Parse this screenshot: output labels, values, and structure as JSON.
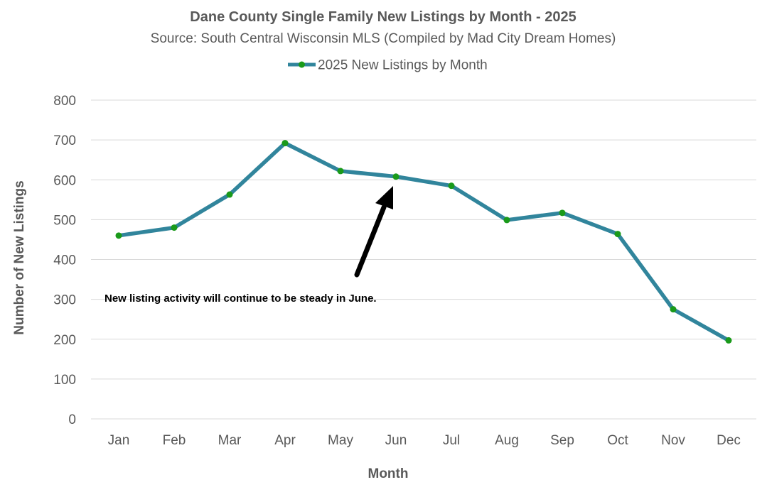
{
  "chart_data": {
    "type": "line",
    "title": "Dane County Single Family New Listings by Month - 2025",
    "subtitle": "Source: South Central Wisconsin MLS (Compiled by Mad City Dream Homes)",
    "xlabel": "Month",
    "ylabel": "Number of New Listings",
    "categories": [
      "Jan",
      "Feb",
      "Mar",
      "Apr",
      "May",
      "Jun",
      "Jul",
      "Aug",
      "Sep",
      "Oct",
      "Nov",
      "Dec"
    ],
    "series": [
      {
        "name": "2025 New Listings by Month",
        "values": [
          460,
          480,
          563,
          692,
          622,
          608,
          585,
          499,
          517,
          464,
          275,
          197
        ]
      }
    ],
    "ylim": [
      0,
      800
    ],
    "yticks": [
      0,
      100,
      200,
      300,
      400,
      500,
      600,
      700,
      800
    ],
    "grid": true,
    "legend_position": "top-center",
    "annotation": {
      "text": "New listing activity will continue to be steady in June.",
      "target_category": "Jun"
    },
    "colors": {
      "line": "#31859c",
      "marker": "#1a9a1a",
      "gridline": "#d9d9d9",
      "text": "#595959",
      "arrow": "#000000"
    }
  }
}
